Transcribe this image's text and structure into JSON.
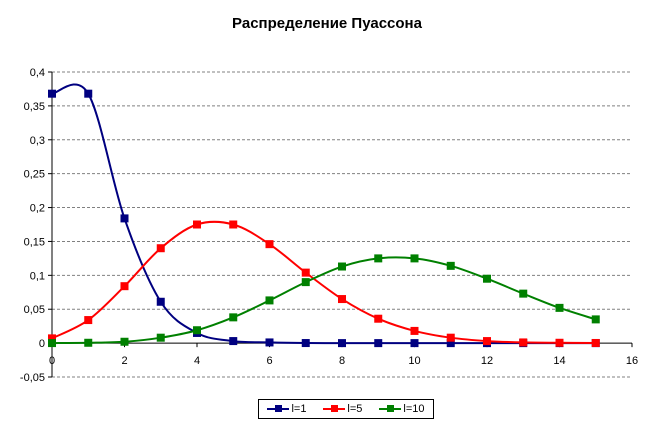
{
  "chart_data": {
    "type": "line",
    "title": "Распределение Пуассона",
    "xlim": [
      0,
      16
    ],
    "ylim": [
      -0.05,
      0.4
    ],
    "x_ticks": [
      "0",
      "2",
      "4",
      "6",
      "8",
      "10",
      "12",
      "14",
      "16"
    ],
    "y_ticks": [
      "-0,05",
      "0",
      "0,05",
      "0,1",
      "0,15",
      "0,2",
      "0,25",
      "0,3",
      "0,35",
      "0,4"
    ],
    "grid": "horizontal dashed",
    "legend_position": "bottom",
    "series": [
      {
        "name": "l=1",
        "color": "#000080",
        "x": [
          0,
          1,
          2,
          3,
          4,
          5,
          6,
          7,
          8,
          9,
          10,
          11,
          12,
          13,
          14,
          15
        ],
        "values": [
          0.368,
          0.368,
          0.184,
          0.061,
          0.015,
          0.003,
          0.001,
          0.0001,
          0,
          0,
          0,
          0,
          0,
          0,
          0,
          0
        ]
      },
      {
        "name": "l=5",
        "color": "#ff0000",
        "x": [
          0,
          1,
          2,
          3,
          4,
          5,
          6,
          7,
          8,
          9,
          10,
          11,
          12,
          13,
          14,
          15
        ],
        "values": [
          0.007,
          0.034,
          0.084,
          0.14,
          0.175,
          0.175,
          0.146,
          0.104,
          0.065,
          0.036,
          0.018,
          0.008,
          0.003,
          0.001,
          0.0005,
          0.0002
        ]
      },
      {
        "name": "l=10",
        "color": "#008000",
        "x": [
          0,
          1,
          2,
          3,
          4,
          5,
          6,
          7,
          8,
          9,
          10,
          11,
          12,
          13,
          14,
          15
        ],
        "values": [
          5e-05,
          0.0005,
          0.002,
          0.008,
          0.019,
          0.038,
          0.063,
          0.09,
          0.113,
          0.125,
          0.125,
          0.114,
          0.095,
          0.073,
          0.052,
          0.035
        ]
      }
    ]
  }
}
